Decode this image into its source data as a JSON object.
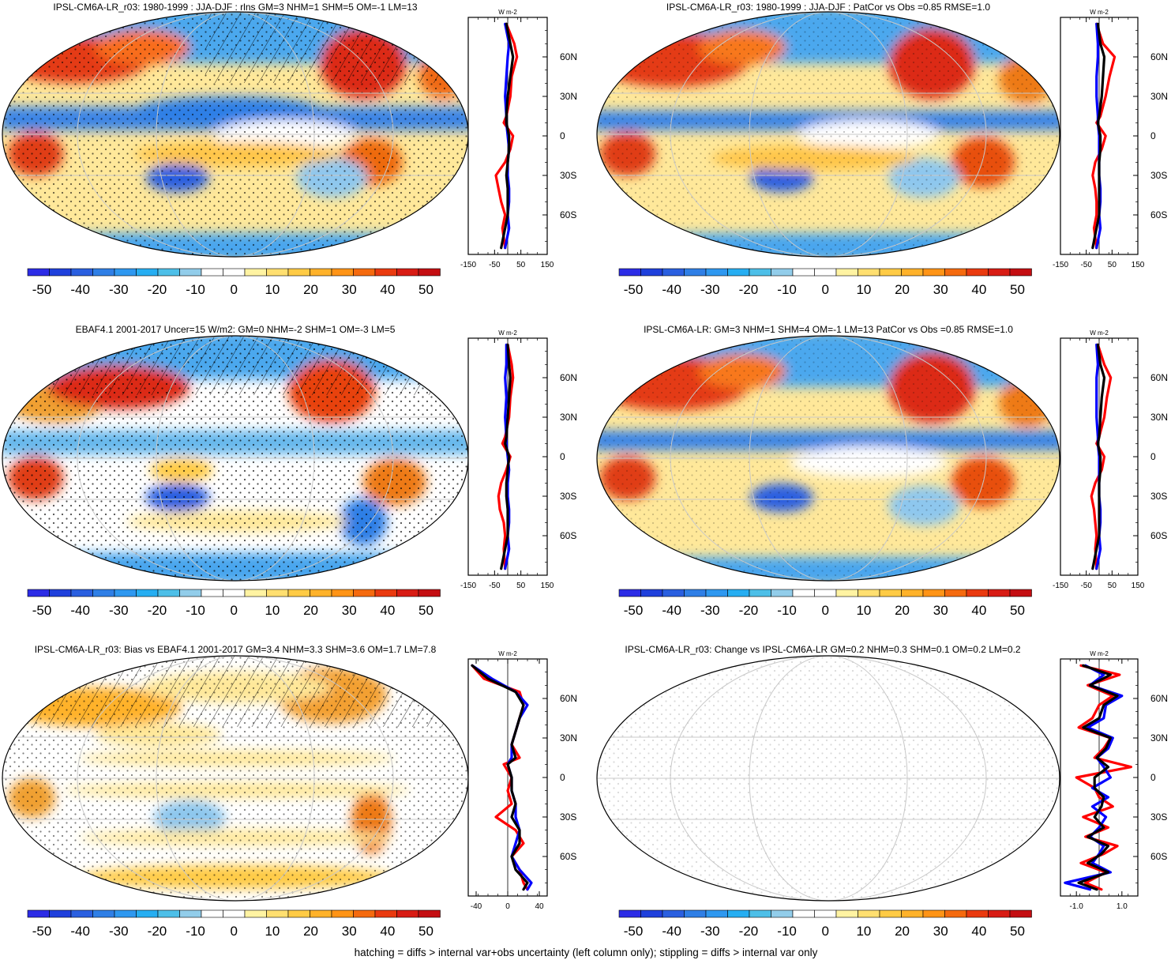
{
  "footer": "hatching = diffs > internal var+obs uncertainty (left column only); stippling = diffs > internal var only",
  "colorbar": {
    "labels": [
      "-50",
      "-40",
      "-30",
      "-20",
      "-10",
      "0",
      "10",
      "20",
      "30",
      "40",
      "50"
    ],
    "colors": [
      "#2c2ce6",
      "#1f40dc",
      "#2a5fe0",
      "#2f7fe6",
      "#2e98f0",
      "#26aef2",
      "#4dbfe8",
      "#92cdea",
      "#ffffff",
      "#ffffff",
      "#fff3a2",
      "#ffdf70",
      "#ffcb45",
      "#ffb22a",
      "#ff9416",
      "#f56a0e",
      "#ea3a0f",
      "#d81c14",
      "#c40e12"
    ]
  },
  "chart_data": [
    {
      "type": "heatmap",
      "title": "IPSL-CM6A-LR_r03: 1980-1999 : JJA-DJF : rlns GM=3 NHM=1 SHM=5 OM=-1 LM=13",
      "colorbar_labels": [
        "-50",
        "-40",
        "-30",
        "-20",
        "-10",
        "0",
        "10",
        "20",
        "30",
        "40",
        "50"
      ],
      "zonal_mean": {
        "unit": "W m-2",
        "x_ticks": [
          "-150",
          "-50",
          "50",
          "150"
        ],
        "xlim": [
          -150,
          150
        ],
        "lat_ticks": [
          "60N",
          "30N",
          "0",
          "30S",
          "60S"
        ],
        "latitudes": [
          85,
          70,
          60,
          45,
          30,
          15,
          10,
          0,
          -10,
          -20,
          -30,
          -40,
          -50,
          -60,
          -70,
          -85
        ],
        "series": [
          {
            "name": "red",
            "color": "#ff0000",
            "values": [
              -5,
              25,
              35,
              15,
              10,
              -5,
              -15,
              20,
              10,
              -10,
              -45,
              -35,
              -25,
              -10,
              -20,
              -10
            ]
          },
          {
            "name": "blue",
            "color": "#0000ff",
            "values": [
              -10,
              5,
              0,
              -5,
              -10,
              -5,
              -5,
              0,
              5,
              0,
              0,
              5,
              5,
              0,
              5,
              -10
            ]
          },
          {
            "name": "black",
            "color": "#000000",
            "values": [
              -5,
              10,
              20,
              10,
              0,
              -5,
              -5,
              5,
              5,
              0,
              -5,
              0,
              0,
              0,
              -10,
              -25
            ]
          }
        ]
      }
    },
    {
      "type": "heatmap",
      "title": "IPSL-CM6A-LR_r03: 1980-1999 : JJA-DJF : PatCor vs Obs =0.85 RMSE=1.0",
      "colorbar_labels": [
        "-50",
        "-40",
        "-30",
        "-20",
        "-10",
        "0",
        "10",
        "20",
        "30",
        "40",
        "50"
      ],
      "zonal_mean": {
        "unit": "W m-2",
        "x_ticks": [
          "-150",
          "-50",
          "50",
          "150"
        ],
        "xlim": [
          -150,
          150
        ],
        "lat_ticks": [
          "60N",
          "30N",
          "0",
          "30S",
          "60S"
        ],
        "latitudes": [
          85,
          70,
          60,
          45,
          30,
          15,
          10,
          0,
          -10,
          -20,
          -30,
          -40,
          -50,
          -60,
          -70,
          -85
        ],
        "series": [
          {
            "name": "red",
            "color": "#ff0000",
            "values": [
              -10,
              15,
              60,
              40,
              25,
              5,
              -10,
              25,
              10,
              -15,
              -25,
              -15,
              -10,
              -10,
              -20,
              -10
            ]
          },
          {
            "name": "blue",
            "color": "#0000ff",
            "values": [
              -10,
              -5,
              -5,
              -10,
              -10,
              -5,
              -5,
              0,
              0,
              0,
              0,
              5,
              5,
              0,
              5,
              -10
            ]
          },
          {
            "name": "black",
            "color": "#000000",
            "values": [
              -5,
              5,
              20,
              15,
              10,
              0,
              -5,
              5,
              5,
              0,
              0,
              0,
              0,
              0,
              -10,
              -25
            ]
          }
        ]
      }
    },
    {
      "type": "heatmap",
      "title": "EBAF4.1 2001-2017 Uncer=15 W/m2: GM=0 NHM=-2 SHM=1 OM=-3 LM=5",
      "colorbar_labels": [
        "-50",
        "-40",
        "-30",
        "-20",
        "-10",
        "0",
        "10",
        "20",
        "30",
        "40",
        "50"
      ],
      "zonal_mean": {
        "unit": "W m-2",
        "x_ticks": [
          "-150",
          "-50",
          "50",
          "150"
        ],
        "xlim": [
          -150,
          150
        ],
        "lat_ticks": [
          "60N",
          "30N",
          "0",
          "30S",
          "60S"
        ],
        "latitudes": [
          85,
          70,
          60,
          45,
          30,
          15,
          10,
          0,
          -10,
          -20,
          -30,
          -40,
          -50,
          -60,
          -70,
          -85
        ],
        "series": [
          {
            "name": "red",
            "color": "#ff0000",
            "values": [
              0,
              15,
              20,
              10,
              5,
              -10,
              -20,
              10,
              -5,
              -25,
              -35,
              -30,
              -15,
              -10,
              -15,
              -10
            ]
          },
          {
            "name": "blue",
            "color": "#0000ff",
            "values": [
              -5,
              -5,
              -10,
              -5,
              -10,
              -5,
              -5,
              0,
              5,
              0,
              0,
              5,
              5,
              0,
              5,
              -10
            ]
          },
          {
            "name": "black",
            "color": "#000000",
            "values": [
              0,
              5,
              10,
              5,
              0,
              -5,
              -10,
              5,
              0,
              -5,
              -5,
              0,
              0,
              0,
              -10,
              -25
            ]
          }
        ]
      }
    },
    {
      "type": "heatmap",
      "title": "IPSL-CM6A-LR: GM=3 NHM=1 SHM=4 OM=-1 LM=13 PatCor vs Obs =0.85 RMSE=1.0",
      "colorbar_labels": [
        "-50",
        "-40",
        "-30",
        "-20",
        "-10",
        "0",
        "10",
        "20",
        "30",
        "40",
        "50"
      ],
      "zonal_mean": {
        "unit": "W m-2",
        "x_ticks": [
          "-150",
          "-50",
          "50",
          "150"
        ],
        "xlim": [
          -150,
          150
        ],
        "lat_ticks": [
          "60N",
          "30N",
          "0",
          "30S",
          "60S"
        ],
        "latitudes": [
          85,
          70,
          60,
          45,
          30,
          15,
          10,
          0,
          -10,
          -20,
          -30,
          -40,
          -50,
          -60,
          -70,
          -85
        ],
        "series": [
          {
            "name": "red",
            "color": "#ff0000",
            "values": [
              -5,
              20,
              45,
              30,
              20,
              0,
              -10,
              20,
              10,
              -15,
              -30,
              -20,
              -15,
              -10,
              -15,
              -10
            ]
          },
          {
            "name": "blue",
            "color": "#0000ff",
            "values": [
              -10,
              -5,
              -10,
              -10,
              -10,
              -5,
              -5,
              0,
              0,
              0,
              0,
              5,
              5,
              0,
              5,
              -10
            ]
          },
          {
            "name": "black",
            "color": "#000000",
            "values": [
              -5,
              5,
              20,
              10,
              5,
              0,
              -5,
              5,
              5,
              0,
              0,
              0,
              0,
              0,
              -10,
              -25
            ]
          }
        ]
      }
    },
    {
      "type": "heatmap",
      "title": "IPSL-CM6A-LR_r03: Bias vs EBAF4.1 2001-2017 GM=3.4 NHM=3.3 SHM=3.6 OM=1.7 LM=7.8",
      "colorbar_labels": [
        "-50",
        "-40",
        "-30",
        "-20",
        "-10",
        "0",
        "10",
        "20",
        "30",
        "40",
        "50"
      ],
      "zonal_mean": {
        "unit": "W m-2",
        "x_ticks": [
          "-40",
          "0",
          "40"
        ],
        "xlim": [
          -50,
          50
        ],
        "lat_ticks": [
          "60N",
          "30N",
          "0",
          "30S",
          "60S"
        ],
        "latitudes": [
          85,
          75,
          65,
          55,
          45,
          35,
          25,
          15,
          10,
          0,
          -10,
          -20,
          -30,
          -40,
          -50,
          -60,
          -70,
          -80,
          -85
        ],
        "series": [
          {
            "name": "red",
            "color": "#ff0000",
            "values": [
              -45,
              -30,
              15,
              20,
              15,
              10,
              5,
              15,
              -5,
              5,
              0,
              5,
              -15,
              10,
              20,
              5,
              15,
              20,
              25
            ]
          },
          {
            "name": "blue",
            "color": "#0000ff",
            "values": [
              -45,
              -20,
              10,
              25,
              15,
              10,
              5,
              5,
              0,
              5,
              5,
              10,
              10,
              15,
              10,
              5,
              15,
              30,
              25
            ]
          },
          {
            "name": "black",
            "color": "#000000",
            "values": [
              -45,
              -25,
              10,
              20,
              15,
              10,
              5,
              10,
              0,
              5,
              5,
              10,
              5,
              15,
              15,
              5,
              10,
              25,
              20
            ]
          }
        ]
      }
    },
    {
      "type": "heatmap",
      "title": "IPSL-CM6A-LR_r03: Change vs IPSL-CM6A-LR GM=0.2 NHM=0.3 SHM=0.1 OM=0.2 LM=0.2",
      "colorbar_labels": [
        "-50",
        "-40",
        "-30",
        "-20",
        "-10",
        "0",
        "10",
        "20",
        "30",
        "40",
        "50"
      ],
      "zonal_mean": {
        "unit": "W m-2",
        "x_ticks": [
          "-1.0",
          "1.0"
        ],
        "xlim": [
          -1.7,
          1.7
        ],
        "lat_ticks": [
          "60N",
          "30N",
          "0",
          "30S",
          "60S"
        ],
        "latitudes": [
          85,
          78,
          70,
          62,
          55,
          45,
          38,
          30,
          22,
          15,
          8,
          0,
          -8,
          -15,
          -22,
          -30,
          -38,
          -45,
          -52,
          -58,
          -65,
          -72,
          -80,
          -85
        ],
        "series": [
          {
            "name": "red",
            "color": "#ff0000",
            "values": [
              -0.8,
              0.9,
              -0.5,
              0.6,
              0.0,
              -0.3,
              -0.9,
              0.5,
              0.2,
              -0.2,
              1.4,
              -1.0,
              -0.2,
              0.0,
              0.6,
              -0.7,
              0.4,
              -0.6,
              0.8,
              0.2,
              -0.8,
              0.3,
              -0.6,
              0.1
            ]
          },
          {
            "name": "blue",
            "color": "#0000ff",
            "values": [
              -0.6,
              0.2,
              -0.4,
              1.0,
              0.3,
              0.2,
              -0.5,
              0.6,
              0.4,
              -0.1,
              0.2,
              0.5,
              -0.3,
              0.4,
              -0.3,
              0.3,
              0.0,
              -0.4,
              0.2,
              0.0,
              -0.3,
              0.5,
              -1.5,
              -0.4
            ]
          },
          {
            "name": "black",
            "color": "#000000",
            "values": [
              -0.7,
              0.5,
              -0.4,
              0.8,
              0.2,
              0.0,
              -0.7,
              0.5,
              0.3,
              -0.1,
              0.4,
              -0.2,
              -0.2,
              0.2,
              0.1,
              -0.2,
              0.2,
              -0.5,
              0.4,
              0.1,
              -0.5,
              0.4,
              -0.9,
              -0.1
            ]
          }
        ]
      }
    }
  ]
}
